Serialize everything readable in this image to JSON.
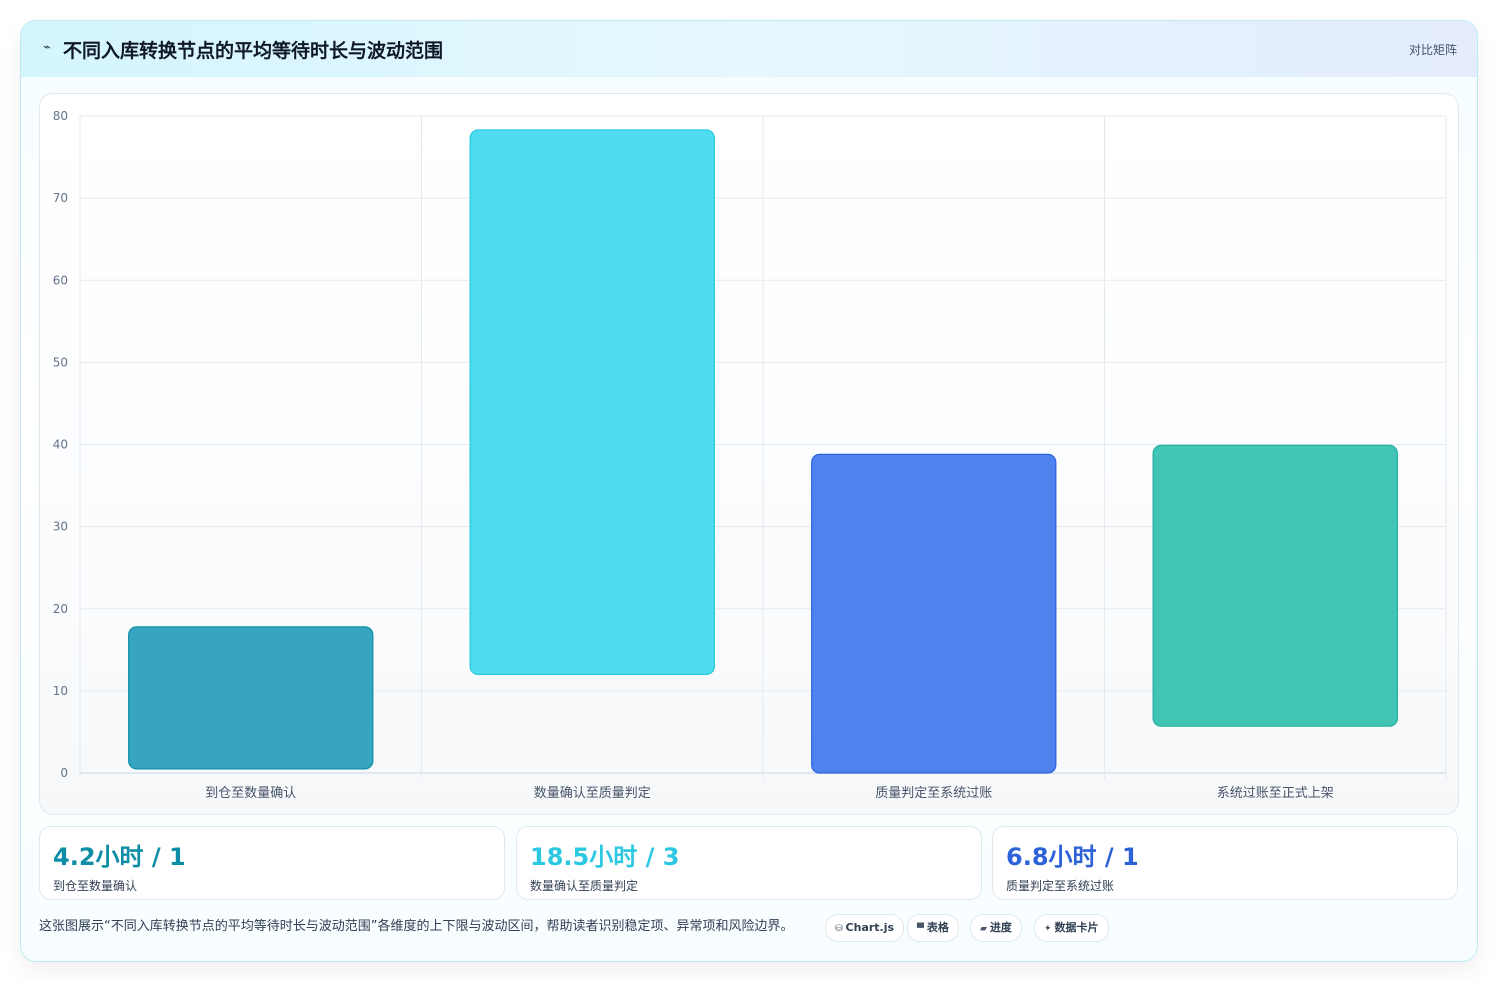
{
  "header": {
    "icon": "trend-line-icon",
    "icon_glyph": "⌁",
    "title": "不同入库转换节点的平均等待时长与波动范围",
    "tag": "对比矩阵"
  },
  "colors": {
    "bar_fills": [
      "#37a5c0",
      "#50dcef",
      "#5082ee",
      "#43c5b6"
    ],
    "bar_strokes": [
      "#0e8fa8",
      "#22c9e0",
      "#2b63de",
      "#1eae9c"
    ],
    "stat_values": [
      "#0e8ea6",
      "#2cc8e2",
      "#2d62d8"
    ]
  },
  "chart_data": {
    "type": "bar",
    "subtype": "floating-range",
    "categories": [
      "到仓至数量确认",
      "数量确认至质量判定",
      "质量判定至系统过账",
      "系统过账至正式上架"
    ],
    "series": [
      {
        "ranges": [
          [
            0.5,
            17.8
          ],
          [
            12,
            78.3
          ],
          [
            0,
            38.8
          ],
          [
            5.7,
            39.9
          ]
        ]
      }
    ],
    "ylim": [
      0,
      80
    ],
    "yticks": [
      0,
      10,
      20,
      30,
      40,
      50,
      60,
      70,
      80
    ],
    "grid": true,
    "legend": "none"
  },
  "stats": [
    {
      "value": "4.2小时 / 1",
      "label": "到仓至数量确认"
    },
    {
      "value": "18.5小时 / 3",
      "label": "数量确认至质量判定"
    },
    {
      "value": "6.8小时 / 1",
      "label": "质量判定至系统过账"
    }
  ],
  "footer": {
    "description": "这张图展示“不同入库转换节点的平均等待时长与波动范围”各维度的上下限与波动区间，帮助读者识别稳定项、异常项和风险边界。",
    "chips": [
      {
        "icon": "database-icon",
        "glyph": "⛁",
        "label": "Chart.js"
      },
      {
        "icon": "table-icon",
        "glyph": "▀",
        "label": "表格"
      },
      {
        "icon": "progress-icon",
        "glyph": "▰",
        "label": "进度"
      },
      {
        "icon": "sparkle-icon",
        "glyph": "✦",
        "label": "数据卡片"
      }
    ]
  }
}
